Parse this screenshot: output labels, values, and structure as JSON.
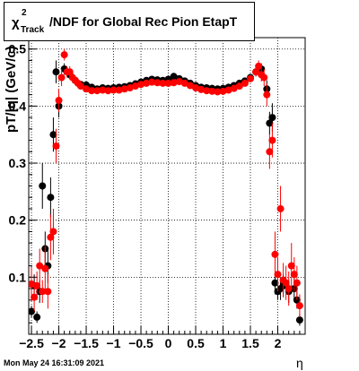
{
  "title": {
    "chi": "χ",
    "sup": "2",
    "sub": "Track",
    "rest": "/NDF for Global Rec Pion EtapT"
  },
  "footer": {
    "timestamp": "Mon May 24 16:31:09 2021"
  },
  "colors": {
    "series_black": "#000000",
    "series_red": "#ff0000",
    "grid": "#000000",
    "frame": "#000000"
  },
  "chart_data": {
    "type": "scatter",
    "title": "χ²_Track/NDF for Global Rec Pion EtapT",
    "xlabel": "η",
    "ylabel": "pT/|q| (GeV/c)",
    "xlim": [
      -2.55,
      2.5
    ],
    "ylim": [
      0.0,
      0.52
    ],
    "grid": true,
    "xticks": [
      -2.5,
      -2,
      -1.5,
      -1,
      -0.5,
      0,
      0.5,
      1,
      1.5,
      2
    ],
    "xtick_labels": [
      "−2.5",
      "−2",
      "−1.5",
      "−1",
      "−0.5",
      "0",
      "0.5",
      "1",
      "1.5",
      "2"
    ],
    "yticks": [
      0.1,
      0.2,
      0.3,
      0.4,
      0.5
    ],
    "ytick_labels": [
      "0.1",
      "0.2",
      "0.3",
      "0.4",
      "0.5"
    ],
    "series": [
      {
        "color": "black",
        "points": [
          [
            -2.5,
            0.04,
            0.01
          ],
          [
            -2.45,
            0.085,
            0.02
          ],
          [
            -2.4,
            0.03,
            0.01
          ],
          [
            -2.35,
            0.075,
            0.02
          ],
          [
            -2.3,
            0.26,
            0.04
          ],
          [
            -2.25,
            0.15,
            0.03
          ],
          [
            -2.2,
            0.12,
            0.03
          ],
          [
            -2.15,
            0.24,
            0.035
          ],
          [
            -2.1,
            0.35,
            0.03
          ],
          [
            -2.05,
            0.46,
            0.02
          ],
          [
            -2.0,
            0.4,
            0.02
          ],
          [
            -1.9,
            0.465,
            0.01
          ],
          [
            -1.8,
            0.455,
            0.008
          ],
          [
            -1.7,
            0.445,
            0.005
          ],
          [
            -1.6,
            0.438,
            0.004
          ],
          [
            -1.5,
            0.437,
            0.004
          ],
          [
            -1.4,
            0.433,
            0.004
          ],
          [
            -1.3,
            0.43,
            0.004
          ],
          [
            -1.2,
            0.432,
            0.004
          ],
          [
            -1.1,
            0.431,
            0.004
          ],
          [
            -1.0,
            0.432,
            0.004
          ],
          [
            -0.9,
            0.433,
            0.004
          ],
          [
            -0.8,
            0.434,
            0.004
          ],
          [
            -0.7,
            0.436,
            0.004
          ],
          [
            -0.6,
            0.439,
            0.004
          ],
          [
            -0.5,
            0.442,
            0.004
          ],
          [
            -0.4,
            0.445,
            0.004
          ],
          [
            -0.3,
            0.447,
            0.004
          ],
          [
            -0.2,
            0.446,
            0.004
          ],
          [
            -0.1,
            0.445,
            0.004
          ],
          [
            0.0,
            0.447,
            0.004
          ],
          [
            0.1,
            0.452,
            0.004
          ],
          [
            0.2,
            0.448,
            0.004
          ],
          [
            0.3,
            0.444,
            0.004
          ],
          [
            0.4,
            0.44,
            0.004
          ],
          [
            0.5,
            0.436,
            0.004
          ],
          [
            0.6,
            0.433,
            0.004
          ],
          [
            0.7,
            0.432,
            0.004
          ],
          [
            0.8,
            0.431,
            0.004
          ],
          [
            0.9,
            0.43,
            0.004
          ],
          [
            1.0,
            0.431,
            0.004
          ],
          [
            1.1,
            0.433,
            0.004
          ],
          [
            1.2,
            0.436,
            0.004
          ],
          [
            1.3,
            0.44,
            0.004
          ],
          [
            1.4,
            0.444,
            0.004
          ],
          [
            1.5,
            0.45,
            0.005
          ],
          [
            1.6,
            0.46,
            0.008
          ],
          [
            1.7,
            0.465,
            0.01
          ],
          [
            1.8,
            0.43,
            0.015
          ],
          [
            1.85,
            0.37,
            0.02
          ],
          [
            1.9,
            0.38,
            0.025
          ],
          [
            1.95,
            0.09,
            0.02
          ],
          [
            2.0,
            0.075,
            0.015
          ],
          [
            2.05,
            0.08,
            0.02
          ],
          [
            2.1,
            0.085,
            0.02
          ],
          [
            2.2,
            0.075,
            0.02
          ],
          [
            2.3,
            0.08,
            0.02
          ],
          [
            2.35,
            0.06,
            0.015
          ],
          [
            2.4,
            0.025,
            0.01
          ]
        ]
      },
      {
        "color": "red",
        "points": [
          [
            -2.5,
            0.088,
            0.03
          ],
          [
            -2.45,
            0.065,
            0.025
          ],
          [
            -2.4,
            0.085,
            0.025
          ],
          [
            -2.35,
            0.12,
            0.03
          ],
          [
            -2.3,
            0.075,
            0.02
          ],
          [
            -2.25,
            0.115,
            0.04
          ],
          [
            -2.2,
            0.075,
            0.03
          ],
          [
            -2.15,
            0.17,
            0.04
          ],
          [
            -2.1,
            0.18,
            0.04
          ],
          [
            -2.05,
            0.33,
            0.03
          ],
          [
            -2.0,
            0.41,
            0.02
          ],
          [
            -1.95,
            0.45,
            0.015
          ],
          [
            -1.9,
            0.49,
            0.01
          ],
          [
            -1.85,
            0.46,
            0.01
          ],
          [
            -1.8,
            0.46,
            0.01
          ],
          [
            -1.75,
            0.45,
            0.008
          ],
          [
            -1.7,
            0.445,
            0.006
          ],
          [
            -1.65,
            0.44,
            0.005
          ],
          [
            -1.6,
            0.435,
            0.005
          ],
          [
            -1.5,
            0.43,
            0.004
          ],
          [
            -1.4,
            0.427,
            0.004
          ],
          [
            -1.3,
            0.427,
            0.004
          ],
          [
            -1.2,
            0.428,
            0.004
          ],
          [
            -1.1,
            0.427,
            0.004
          ],
          [
            -1.0,
            0.428,
            0.004
          ],
          [
            -0.9,
            0.428,
            0.004
          ],
          [
            -0.8,
            0.43,
            0.004
          ],
          [
            -0.7,
            0.432,
            0.004
          ],
          [
            -0.6,
            0.435,
            0.004
          ],
          [
            -0.5,
            0.438,
            0.004
          ],
          [
            -0.4,
            0.44,
            0.004
          ],
          [
            -0.3,
            0.442,
            0.004
          ],
          [
            -0.2,
            0.441,
            0.004
          ],
          [
            -0.1,
            0.44,
            0.004
          ],
          [
            0.0,
            0.44,
            0.004
          ],
          [
            0.1,
            0.441,
            0.004
          ],
          [
            0.2,
            0.443,
            0.004
          ],
          [
            0.3,
            0.44,
            0.004
          ],
          [
            0.4,
            0.436,
            0.004
          ],
          [
            0.5,
            0.432,
            0.004
          ],
          [
            0.6,
            0.429,
            0.004
          ],
          [
            0.7,
            0.427,
            0.004
          ],
          [
            0.8,
            0.426,
            0.004
          ],
          [
            0.9,
            0.425,
            0.004
          ],
          [
            1.0,
            0.426,
            0.004
          ],
          [
            1.1,
            0.428,
            0.004
          ],
          [
            1.2,
            0.431,
            0.004
          ],
          [
            1.3,
            0.435,
            0.004
          ],
          [
            1.4,
            0.44,
            0.004
          ],
          [
            1.5,
            0.448,
            0.005
          ],
          [
            1.6,
            0.46,
            0.008
          ],
          [
            1.65,
            0.47,
            0.01
          ],
          [
            1.7,
            0.455,
            0.012
          ],
          [
            1.75,
            0.45,
            0.015
          ],
          [
            1.8,
            0.42,
            0.02
          ],
          [
            1.85,
            0.32,
            0.03
          ],
          [
            1.9,
            0.34,
            0.03
          ],
          [
            1.95,
            0.14,
            0.04
          ],
          [
            2.0,
            0.105,
            0.03
          ],
          [
            2.05,
            0.22,
            0.04
          ],
          [
            2.1,
            0.095,
            0.03
          ],
          [
            2.15,
            0.09,
            0.03
          ],
          [
            2.2,
            0.08,
            0.03
          ],
          [
            2.25,
            0.12,
            0.04
          ],
          [
            2.3,
            0.105,
            0.03
          ],
          [
            2.35,
            0.09,
            0.03
          ],
          [
            2.4,
            0.05,
            0.02
          ]
        ]
      }
    ]
  }
}
